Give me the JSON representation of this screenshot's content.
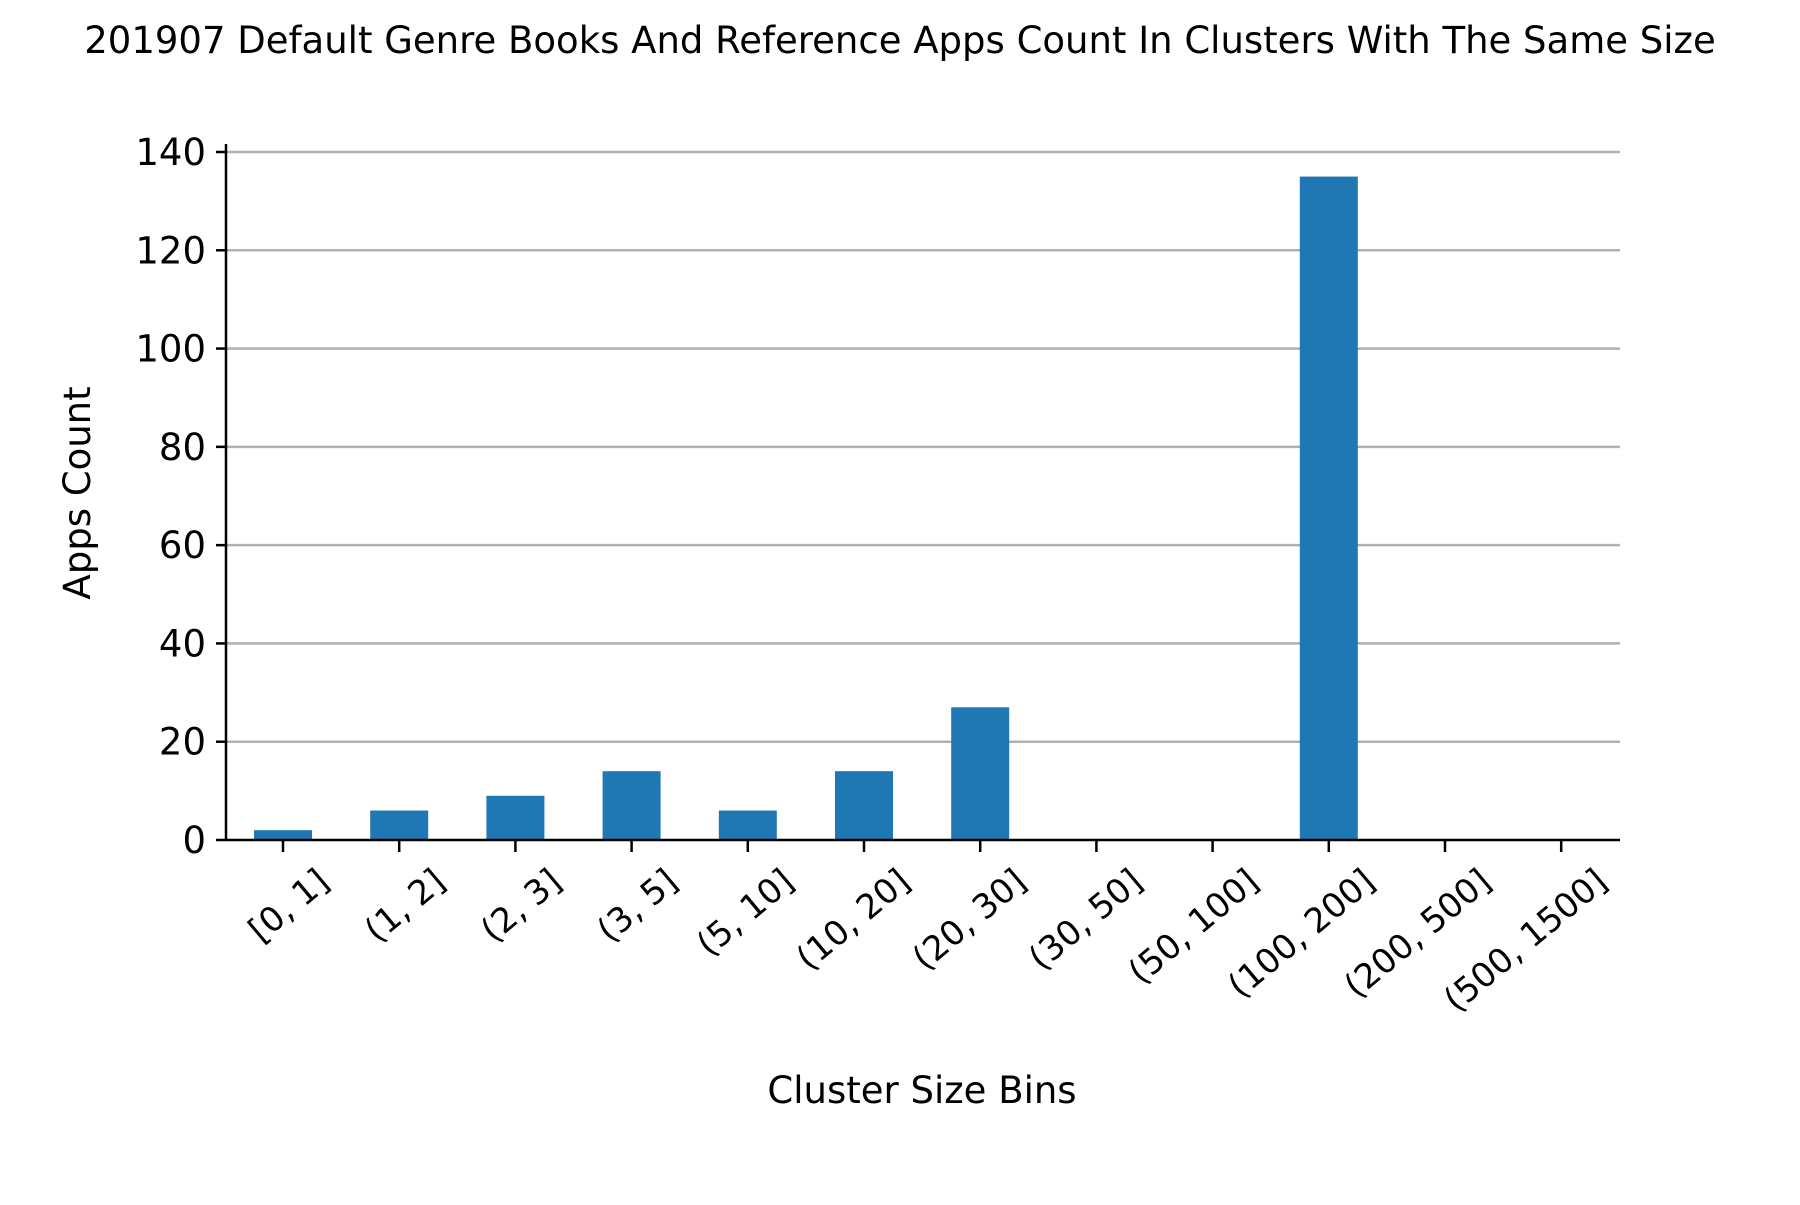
{
  "chart_data": {
    "type": "bar",
    "title": "201907 Default Genre Books And Reference Apps Count In Clusters With The Same Size",
    "xlabel": "Cluster Size Bins",
    "ylabel": "Apps Count",
    "categories": [
      "[0, 1]",
      "(1, 2]",
      "(2, 3]",
      "(3, 5]",
      "(5, 10]",
      "(10, 20]",
      "(20, 30]",
      "(30, 50]",
      "(50, 100]",
      "(100, 200]",
      "(200, 500]",
      "(500, 1500]"
    ],
    "values": [
      2,
      6,
      9,
      14,
      6,
      14,
      27,
      0,
      0,
      135,
      0,
      0
    ],
    "ylim": [
      0,
      140
    ],
    "yticks": [
      0,
      20,
      40,
      60,
      80,
      100,
      120,
      140
    ],
    "grid": "y",
    "bar_color": "#1f77b4",
    "grid_color": "#b0b0b0"
  }
}
